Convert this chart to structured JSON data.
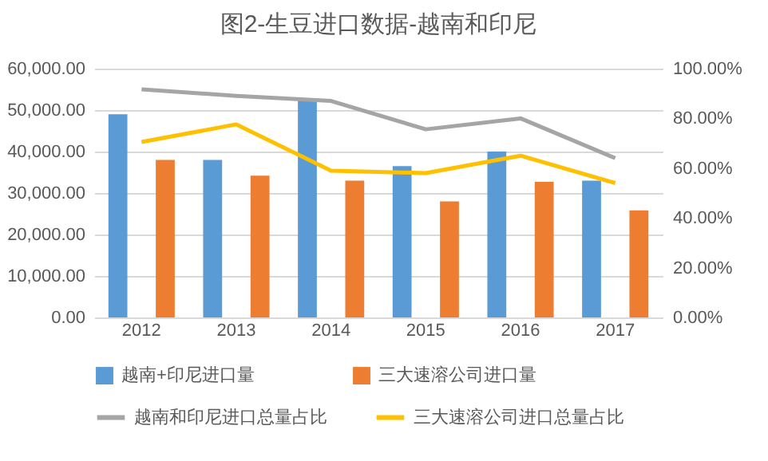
{
  "chart_data": {
    "type": "bar",
    "title": "图2-生豆进口数据-越南和印尼",
    "categories": [
      "2012",
      "2013",
      "2014",
      "2015",
      "2016",
      "2017"
    ],
    "series": [
      {
        "name": "越南+印尼进口量",
        "color": "#5b9bd5",
        "values": [
          49000,
          38000,
          52300,
          36500,
          40000,
          33000
        ]
      },
      {
        "name": "三大速溶公司进口量",
        "color": "#ed7d31",
        "values": [
          38000,
          34200,
          33000,
          28000,
          32700,
          25800
        ]
      },
      {
        "name": "越南和印尼进口总量占比",
        "color": "#a5a5a5",
        "type": "line",
        "axis": "y2",
        "values": [
          91.7,
          89,
          87,
          75.6,
          80,
          64
        ]
      },
      {
        "name": "三大速溶公司进口总量占比",
        "color": "#ffc000",
        "type": "line",
        "axis": "y2",
        "values": [
          70.5,
          77.6,
          59,
          58,
          65,
          54
        ]
      }
    ],
    "ylim": [
      0,
      60000
    ],
    "yticks": [
      {
        "value": 0,
        "label": "0.00"
      },
      {
        "value": 10000,
        "label": "10,000.00"
      },
      {
        "value": 20000,
        "label": "20,000.00"
      },
      {
        "value": 30000,
        "label": "30,000.00"
      },
      {
        "value": 40000,
        "label": "40,000.00"
      },
      {
        "value": 50000,
        "label": "50,000.00"
      },
      {
        "value": 60000,
        "label": "60,000.00"
      }
    ],
    "y2lim": [
      0,
      100
    ],
    "y2ticks": [
      {
        "value": 0,
        "label": "0.00%"
      },
      {
        "value": 20,
        "label": "20.00%"
      },
      {
        "value": 40,
        "label": "40.00%"
      },
      {
        "value": 60,
        "label": "60.00%"
      },
      {
        "value": 80,
        "label": "80.00%"
      },
      {
        "value": 100,
        "label": "100.00%"
      }
    ],
    "grid": "y",
    "legend": "bottom"
  }
}
